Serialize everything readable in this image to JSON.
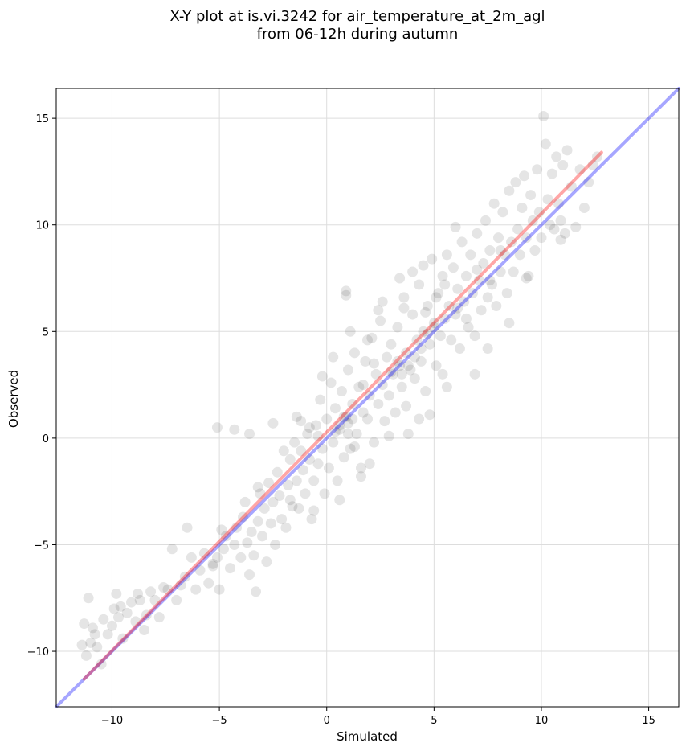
{
  "chart_data": {
    "type": "scatter",
    "title": "X-Y plot at is.vi.3242 for air_temperature_at_2m_agl",
    "subtitle": "from 06-12h during autumn",
    "xlabel": "Simulated",
    "ylabel": "Observed",
    "xlim": [
      -12.6,
      16.4
    ],
    "ylim": [
      -12.6,
      16.4
    ],
    "xticks": [
      -10,
      -5,
      0,
      5,
      10,
      15
    ],
    "yticks": [
      -10,
      -5,
      0,
      5,
      10,
      15
    ],
    "xtick_labels": [
      "−10",
      "−5",
      "0",
      "5",
      "10",
      "15"
    ],
    "ytick_labels": [
      "−10",
      "−5",
      "0",
      "5",
      "10",
      "15"
    ],
    "grid": true,
    "colors": {
      "points": "#000000",
      "identity_line": "#0000ff",
      "fit_line": "#ff0000",
      "grid": "#dddddd"
    },
    "lines": [
      {
        "role": "identity",
        "x": [
          -12.6,
          16.4
        ],
        "y": [
          -12.6,
          16.4
        ]
      },
      {
        "role": "fit",
        "x": [
          -11.3,
          12.8
        ],
        "y": [
          -11.3,
          13.4
        ]
      }
    ],
    "points": [
      [
        -11.3,
        -8.7
      ],
      [
        -11.2,
        -10.2
      ],
      [
        -11.0,
        -9.6
      ],
      [
        -10.9,
        -8.9
      ],
      [
        -11.1,
        -7.5
      ],
      [
        -10.7,
        -9.8
      ],
      [
        -10.5,
        -10.6
      ],
      [
        -10.4,
        -8.5
      ],
      [
        -10.2,
        -9.2
      ],
      [
        -10.0,
        -8.8
      ],
      [
        -9.9,
        -8.0
      ],
      [
        -9.8,
        -7.3
      ],
      [
        -9.7,
        -8.4
      ],
      [
        -9.5,
        -9.4
      ],
      [
        -9.3,
        -8.2
      ],
      [
        -9.1,
        -7.7
      ],
      [
        -8.9,
        -8.6
      ],
      [
        -8.7,
        -7.6
      ],
      [
        -8.5,
        -9.0
      ],
      [
        -8.4,
        -8.3
      ],
      [
        -8.2,
        -7.2
      ],
      [
        -8.0,
        -7.6
      ],
      [
        -7.8,
        -8.4
      ],
      [
        -7.6,
        -7.0
      ],
      [
        -7.4,
        -7.1
      ],
      [
        -7.2,
        -5.2
      ],
      [
        -7.0,
        -7.6
      ],
      [
        -6.8,
        -6.9
      ],
      [
        -6.6,
        -6.5
      ],
      [
        -6.5,
        -4.2
      ],
      [
        -6.3,
        -5.6
      ],
      [
        -6.1,
        -7.1
      ],
      [
        -5.9,
        -6.2
      ],
      [
        -5.7,
        -5.4
      ],
      [
        -5.5,
        -6.8
      ],
      [
        -5.3,
        -6.0
      ],
      [
        -5.1,
        -5.6
      ],
      [
        -5.0,
        -7.1
      ],
      [
        -4.8,
        -5.2
      ],
      [
        -4.7,
        -4.6
      ],
      [
        -4.5,
        -6.1
      ],
      [
        -4.3,
        -5.0
      ],
      [
        -4.2,
        -4.2
      ],
      [
        -4.0,
        -5.6
      ],
      [
        -3.9,
        -3.7
      ],
      [
        -3.8,
        -3.0
      ],
      [
        -3.7,
        -4.9
      ],
      [
        -3.6,
        -6.4
      ],
      [
        -3.5,
        -4.4
      ],
      [
        -3.4,
        -5.5
      ],
      [
        -3.3,
        -7.2
      ],
      [
        -3.2,
        -3.9
      ],
      [
        -3.1,
        -2.6
      ],
      [
        -3.0,
        -4.6
      ],
      [
        -2.9,
        -3.3
      ],
      [
        -2.8,
        -5.8
      ],
      [
        -2.7,
        -2.1
      ],
      [
        -2.6,
        -4.0
      ],
      [
        -2.5,
        -3.0
      ],
      [
        -2.4,
        -5.0
      ],
      [
        -2.3,
        -1.6
      ],
      [
        -2.2,
        -2.7
      ],
      [
        -2.1,
        -3.8
      ],
      [
        -2.0,
        -0.6
      ],
      [
        -1.9,
        -4.2
      ],
      [
        -1.8,
        -2.2
      ],
      [
        -1.7,
        -1.0
      ],
      [
        -1.6,
        -3.2
      ],
      [
        -1.5,
        -0.2
      ],
      [
        -1.4,
        -2.0
      ],
      [
        -1.3,
        -3.3
      ],
      [
        -1.2,
        0.8
      ],
      [
        -1.1,
        -1.5
      ],
      [
        -1.0,
        -2.6
      ],
      [
        -0.9,
        0.2
      ],
      [
        -0.8,
        -1.0
      ],
      [
        -0.7,
        -3.8
      ],
      [
        -0.6,
        -2.0
      ],
      [
        -0.5,
        0.6
      ],
      [
        -0.4,
        -1.2
      ],
      [
        -0.3,
        1.8
      ],
      [
        -0.2,
        -0.5
      ],
      [
        -0.1,
        -2.6
      ],
      [
        0.0,
        0.9
      ],
      [
        0.1,
        -1.4
      ],
      [
        0.2,
        2.6
      ],
      [
        0.3,
        -0.2
      ],
      [
        0.4,
        1.4
      ],
      [
        0.5,
        -2.0
      ],
      [
        0.6,
        0.4
      ],
      [
        0.7,
        2.2
      ],
      [
        0.8,
        -0.9
      ],
      [
        0.9,
        1.0
      ],
      [
        1.0,
        3.2
      ],
      [
        1.0,
        0.7
      ],
      [
        1.1,
        -0.5
      ],
      [
        1.2,
        1.6
      ],
      [
        1.3,
        4.0
      ],
      [
        1.4,
        0.2
      ],
      [
        1.5,
        2.4
      ],
      [
        1.6,
        -1.4
      ],
      [
        1.7,
        1.2
      ],
      [
        1.8,
        3.6
      ],
      [
        1.9,
        0.9
      ],
      [
        2.0,
        2.0
      ],
      [
        2.1,
        4.7
      ],
      [
        2.2,
        -0.2
      ],
      [
        2.3,
        3.0
      ],
      [
        2.4,
        1.6
      ],
      [
        2.5,
        5.5
      ],
      [
        2.6,
        2.5
      ],
      [
        2.7,
        0.8
      ],
      [
        2.8,
        3.8
      ],
      [
        2.9,
        2.0
      ],
      [
        3.0,
        4.4
      ],
      [
        3.1,
        3.0
      ],
      [
        3.2,
        1.2
      ],
      [
        3.3,
        5.2
      ],
      [
        3.4,
        3.4
      ],
      [
        3.5,
        2.4
      ],
      [
        3.6,
        6.6
      ],
      [
        3.7,
        4.0
      ],
      [
        3.8,
        0.2
      ],
      [
        3.9,
        3.2
      ],
      [
        4.0,
        5.8
      ],
      [
        4.1,
        2.8
      ],
      [
        4.2,
        4.6
      ],
      [
        4.3,
        7.2
      ],
      [
        4.4,
        3.6
      ],
      [
        4.5,
        5.0
      ],
      [
        4.6,
        2.2
      ],
      [
        4.7,
        6.2
      ],
      [
        4.8,
        4.4
      ],
      [
        4.9,
        8.4
      ],
      [
        5.0,
        5.2
      ],
      [
        5.1,
        3.4
      ],
      [
        5.2,
        6.8
      ],
      [
        5.3,
        4.8
      ],
      [
        5.4,
        7.6
      ],
      [
        5.5,
        5.6
      ],
      [
        5.6,
        2.4
      ],
      [
        5.7,
        6.2
      ],
      [
        5.8,
        4.6
      ],
      [
        5.9,
        8.0
      ],
      [
        6.0,
        5.8
      ],
      [
        6.1,
        7.0
      ],
      [
        6.2,
        4.2
      ],
      [
        6.3,
        9.2
      ],
      [
        6.4,
        6.4
      ],
      [
        6.5,
        7.6
      ],
      [
        6.6,
        5.2
      ],
      [
        6.7,
        8.6
      ],
      [
        6.8,
        6.8
      ],
      [
        6.9,
        4.8
      ],
      [
        7.0,
        9.6
      ],
      [
        7.1,
        7.4
      ],
      [
        7.2,
        6.0
      ],
      [
        7.3,
        8.2
      ],
      [
        7.4,
        10.2
      ],
      [
        7.5,
        6.6
      ],
      [
        7.6,
        8.8
      ],
      [
        7.7,
        7.2
      ],
      [
        7.8,
        11.0
      ],
      [
        7.9,
        6.2
      ],
      [
        8.0,
        9.4
      ],
      [
        8.1,
        7.8
      ],
      [
        8.2,
        10.6
      ],
      [
        8.3,
        8.6
      ],
      [
        8.4,
        6.8
      ],
      [
        8.5,
        11.6
      ],
      [
        8.6,
        9.2
      ],
      [
        8.7,
        7.8
      ],
      [
        8.8,
        12.0
      ],
      [
        8.9,
        9.8
      ],
      [
        9.0,
        8.6
      ],
      [
        9.1,
        10.8
      ],
      [
        9.2,
        12.3
      ],
      [
        9.3,
        9.4
      ],
      [
        9.4,
        7.6
      ],
      [
        9.5,
        11.4
      ],
      [
        9.6,
        10.2
      ],
      [
        9.7,
        8.8
      ],
      [
        9.8,
        12.6
      ],
      [
        9.9,
        10.6
      ],
      [
        10.0,
        9.4
      ],
      [
        10.1,
        15.1
      ],
      [
        10.2,
        13.8
      ],
      [
        10.3,
        11.2
      ],
      [
        10.4,
        10.0
      ],
      [
        10.5,
        12.4
      ],
      [
        10.6,
        9.8
      ],
      [
        10.7,
        13.2
      ],
      [
        10.8,
        11.0
      ],
      [
        10.9,
        10.2
      ],
      [
        11.0,
        12.8
      ],
      [
        11.1,
        9.6
      ],
      [
        11.2,
        13.5
      ],
      [
        11.4,
        11.8
      ],
      [
        11.6,
        9.9
      ],
      [
        11.8,
        12.6
      ],
      [
        12.0,
        10.8
      ],
      [
        12.2,
        12.0
      ],
      [
        12.4,
        12.8
      ],
      [
        12.6,
        13.2
      ],
      [
        -11.4,
        -9.7
      ],
      [
        -10.8,
        -9.2
      ],
      [
        -9.6,
        -7.9
      ],
      [
        -8.8,
        -7.3
      ],
      [
        -3.6,
        0.2
      ],
      [
        -4.3,
        0.4
      ],
      [
        -5.1,
        0.5
      ],
      [
        -4.9,
        -4.3
      ],
      [
        -5.3,
        -5.9
      ],
      [
        -3.2,
        -2.3
      ],
      [
        -2.5,
        0.7
      ],
      [
        -1.4,
        1.0
      ],
      [
        0.9,
        6.9
      ],
      [
        0.9,
        6.7
      ],
      [
        1.3,
        -0.4
      ],
      [
        1.7,
        2.5
      ],
      [
        2.2,
        3.5
      ],
      [
        2.6,
        6.4
      ],
      [
        3.4,
        7.5
      ],
      [
        4.0,
        7.8
      ],
      [
        4.8,
        1.1
      ],
      [
        5.4,
        3.0
      ],
      [
        6.0,
        9.9
      ],
      [
        6.9,
        3.0
      ],
      [
        7.5,
        4.2
      ],
      [
        8.5,
        5.4
      ],
      [
        9.3,
        7.5
      ],
      [
        10.9,
        9.3
      ],
      [
        -0.2,
        2.9
      ],
      [
        0.3,
        3.8
      ],
      [
        1.1,
        5.0
      ],
      [
        1.9,
        4.6
      ],
      [
        2.4,
        6.0
      ],
      [
        3.6,
        6.1
      ],
      [
        4.5,
        8.1
      ],
      [
        5.6,
        8.6
      ],
      [
        2.0,
        -1.2
      ],
      [
        1.6,
        -1.8
      ],
      [
        0.6,
        -2.9
      ],
      [
        -0.6,
        -3.4
      ],
      [
        -1.7,
        -2.9
      ],
      [
        2.9,
        0.1
      ],
      [
        3.7,
        1.5
      ],
      [
        4.3,
        0.9
      ],
      [
        4.6,
        5.9
      ],
      [
        5.1,
        6.6
      ],
      [
        5.5,
        7.2
      ],
      [
        6.1,
        6.1
      ],
      [
        6.5,
        5.6
      ],
      [
        7.0,
        7.9
      ],
      [
        7.6,
        7.4
      ],
      [
        8.1,
        8.8
      ],
      [
        3.0,
        3.1
      ],
      [
        3.3,
        3.6
      ],
      [
        3.5,
        3.0
      ],
      [
        3.8,
        3.4
      ],
      [
        4.1,
        3.8
      ],
      [
        4.4,
        4.2
      ],
      [
        4.7,
        4.9
      ],
      [
        5.0,
        5.4
      ],
      [
        0.6,
        0.6
      ],
      [
        0.8,
        1.0
      ],
      [
        1.0,
        0.2
      ],
      [
        1.2,
        0.9
      ],
      [
        0.4,
        0.3
      ],
      [
        -0.4,
        0.1
      ],
      [
        -0.8,
        0.5
      ],
      [
        -1.2,
        -0.6
      ]
    ]
  }
}
